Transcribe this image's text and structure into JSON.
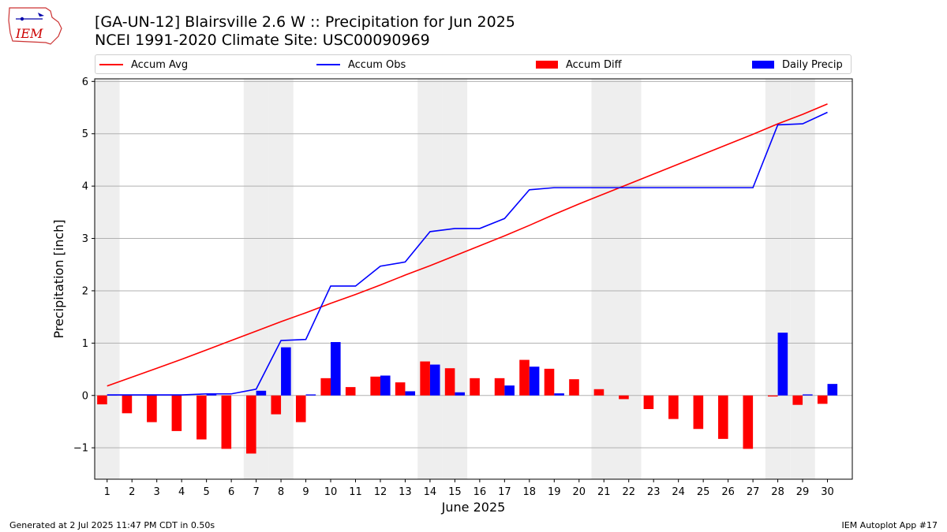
{
  "title_line1": "[GA-UN-12] Blairsville 2.6 W :: Precipitation for Jun 2025",
  "title_line2": "NCEI 1991-2020 Climate Site: USC00090969",
  "logo_text": "IEM",
  "footer_left": "Generated at 2 Jul 2025 11:47 PM CDT in 0.50s",
  "footer_right": "IEM Autoplot App #17",
  "colors": {
    "avg": "#ff0000",
    "obs": "#0000ff",
    "diff": "#ff0000",
    "daily": "#0000ff",
    "weekend": "#eeeeee",
    "grid": "#b0b0b0"
  },
  "chart_data": {
    "type": "bar",
    "xlabel": "June 2025",
    "ylabel": "Precipitation [inch]",
    "ylim": [
      -1.6,
      6.05
    ],
    "yticks": [
      -1,
      0,
      1,
      2,
      3,
      4,
      5,
      6
    ],
    "ytick_labels": [
      "−1",
      "0",
      "1",
      "2",
      "3",
      "4",
      "5",
      "6"
    ],
    "grid": "horizontal",
    "legend_position": "top",
    "days": [
      1,
      2,
      3,
      4,
      5,
      6,
      7,
      8,
      9,
      10,
      11,
      12,
      13,
      14,
      15,
      16,
      17,
      18,
      19,
      20,
      21,
      22,
      23,
      24,
      25,
      26,
      27,
      28,
      29,
      30
    ],
    "weekend_days": [
      1,
      7,
      8,
      14,
      15,
      21,
      22,
      28,
      29
    ],
    "series": [
      {
        "name": "Accum Avg",
        "kind": "line",
        "values": [
          0.18,
          0.35,
          0.52,
          0.69,
          0.87,
          1.05,
          1.23,
          1.41,
          1.58,
          1.76,
          1.93,
          2.11,
          2.3,
          2.48,
          2.67,
          2.86,
          3.05,
          3.25,
          3.46,
          3.66,
          3.85,
          4.04,
          4.23,
          4.42,
          4.61,
          4.8,
          4.99,
          5.19,
          5.37,
          5.57
        ]
      },
      {
        "name": "Accum Obs",
        "kind": "line",
        "values": [
          0.01,
          0.01,
          0.01,
          0.01,
          0.03,
          0.03,
          0.12,
          1.05,
          1.07,
          2.09,
          2.09,
          2.47,
          2.55,
          3.13,
          3.19,
          3.19,
          3.38,
          3.93,
          3.97,
          3.97,
          3.97,
          3.97,
          3.97,
          3.97,
          3.97,
          3.97,
          3.97,
          5.17,
          5.19,
          5.41
        ]
      },
      {
        "name": "Accum Diff",
        "kind": "bar",
        "values": [
          -0.17,
          -0.34,
          -0.51,
          -0.68,
          -0.84,
          -1.02,
          -1.11,
          -0.36,
          -0.51,
          0.33,
          0.16,
          0.36,
          0.25,
          0.65,
          0.52,
          0.33,
          0.33,
          0.68,
          0.51,
          0.31,
          0.12,
          -0.07,
          -0.26,
          -0.45,
          -0.64,
          -0.83,
          -1.02,
          -0.02,
          -0.18,
          -0.16
        ]
      },
      {
        "name": "Daily Precip",
        "kind": "bar",
        "values": [
          0.01,
          0.0,
          0.0,
          0.0,
          0.02,
          0.0,
          0.09,
          0.92,
          0.02,
          1.02,
          0.0,
          0.38,
          0.08,
          0.59,
          0.06,
          0.0,
          0.19,
          0.55,
          0.04,
          0.0,
          0.0,
          0.0,
          0.0,
          0.0,
          0.0,
          0.0,
          0.0,
          1.2,
          0.02,
          0.22
        ]
      }
    ]
  }
}
